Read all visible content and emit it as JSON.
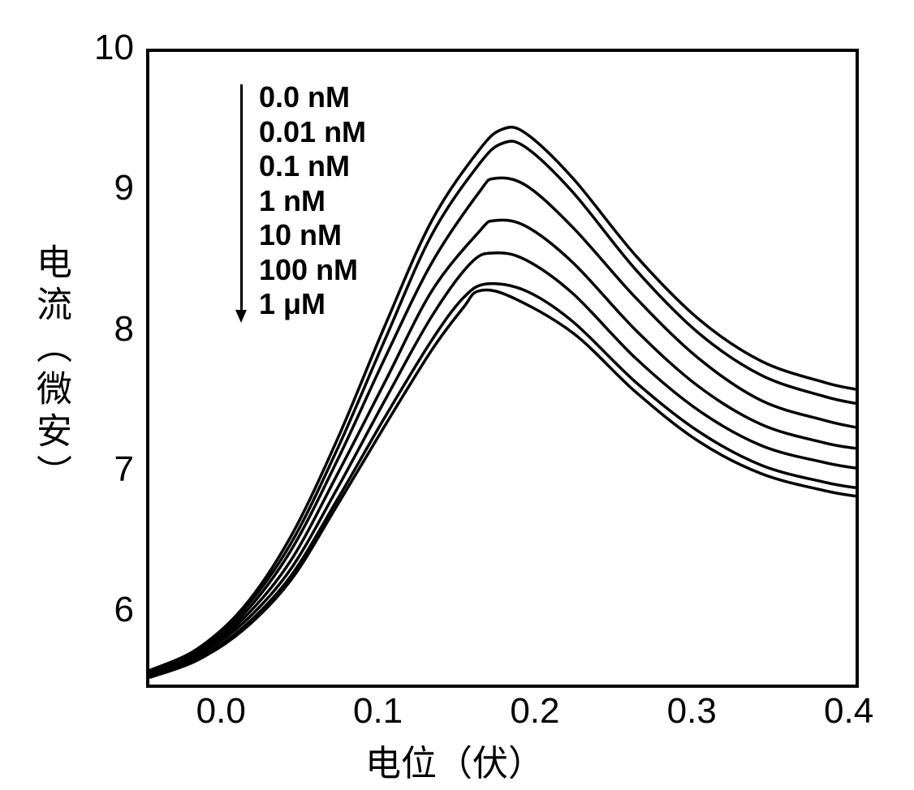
{
  "chart": {
    "type": "line",
    "xlabel": "电位（伏）",
    "ylabel": "电流（微安）",
    "label_fontsize": 44,
    "xlim": [
      -0.05,
      0.4
    ],
    "ylim": [
      5.5,
      10
    ],
    "xtick_positions": [
      0.0,
      0.1,
      0.2,
      0.3,
      0.4
    ],
    "xtick_labels": [
      "0.0",
      "0.1",
      "0.2",
      "0.3",
      "0.4"
    ],
    "ytick_positions": [
      6,
      7,
      8,
      9,
      10
    ],
    "ytick_labels": [
      "6",
      "7",
      "8",
      "9",
      "10"
    ],
    "tick_fontsize": 44,
    "background_color": "#ffffff",
    "border_color": "#000000",
    "border_width": 4,
    "line_color": "#000000",
    "line_width": 3.5,
    "series": [
      {
        "label": "0.0 nM",
        "x": [
          -0.05,
          -0.02,
          0.01,
          0.04,
          0.07,
          0.1,
          0.13,
          0.16,
          0.175,
          0.19,
          0.22,
          0.26,
          0.3,
          0.34,
          0.38,
          0.4
        ],
        "y": [
          5.6,
          5.75,
          6.05,
          6.55,
          7.25,
          8.05,
          8.8,
          9.3,
          9.45,
          9.42,
          9.1,
          8.55,
          8.1,
          7.8,
          7.65,
          7.6
        ]
      },
      {
        "label": "0.01 nM",
        "x": [
          -0.05,
          -0.02,
          0.01,
          0.04,
          0.07,
          0.1,
          0.13,
          0.16,
          0.175,
          0.19,
          0.22,
          0.26,
          0.3,
          0.34,
          0.38,
          0.4
        ],
        "y": [
          5.6,
          5.74,
          6.03,
          6.5,
          7.18,
          7.95,
          8.7,
          9.2,
          9.35,
          9.32,
          9.0,
          8.45,
          8.0,
          7.7,
          7.55,
          7.5
        ]
      },
      {
        "label": "0.1 nM",
        "x": [
          -0.05,
          -0.02,
          0.01,
          0.04,
          0.07,
          0.1,
          0.13,
          0.16,
          0.17,
          0.19,
          0.22,
          0.26,
          0.3,
          0.34,
          0.38,
          0.4
        ],
        "y": [
          5.59,
          5.72,
          6.0,
          6.45,
          7.1,
          7.82,
          8.5,
          9.0,
          9.1,
          9.05,
          8.75,
          8.25,
          7.82,
          7.52,
          7.38,
          7.33
        ]
      },
      {
        "label": "1 nM",
        "x": [
          -0.05,
          -0.02,
          0.01,
          0.04,
          0.07,
          0.1,
          0.13,
          0.16,
          0.17,
          0.19,
          0.22,
          0.26,
          0.3,
          0.34,
          0.38,
          0.4
        ],
        "y": [
          5.58,
          5.71,
          5.97,
          6.38,
          7.0,
          7.65,
          8.3,
          8.72,
          8.8,
          8.76,
          8.5,
          8.02,
          7.62,
          7.35,
          7.22,
          7.18
        ]
      },
      {
        "label": "10 nM",
        "x": [
          -0.05,
          -0.02,
          0.01,
          0.04,
          0.07,
          0.1,
          0.13,
          0.155,
          0.17,
          0.19,
          0.22,
          0.26,
          0.3,
          0.34,
          0.38,
          0.4
        ],
        "y": [
          5.57,
          5.7,
          5.94,
          6.32,
          6.9,
          7.52,
          8.12,
          8.5,
          8.57,
          8.52,
          8.28,
          7.82,
          7.45,
          7.2,
          7.08,
          7.04
        ]
      },
      {
        "label": "100 nM",
        "x": [
          -0.05,
          -0.02,
          0.01,
          0.04,
          0.07,
          0.1,
          0.13,
          0.15,
          0.165,
          0.19,
          0.22,
          0.26,
          0.3,
          0.34,
          0.38,
          0.4
        ],
        "y": [
          5.56,
          5.68,
          5.91,
          6.27,
          6.82,
          7.4,
          7.95,
          8.25,
          8.35,
          8.3,
          8.08,
          7.65,
          7.3,
          7.06,
          6.94,
          6.9
        ]
      },
      {
        "label": "1 μM",
        "x": [
          -0.05,
          -0.02,
          0.01,
          0.04,
          0.07,
          0.1,
          0.13,
          0.15,
          0.16,
          0.18,
          0.22,
          0.26,
          0.3,
          0.34,
          0.38,
          0.4
        ],
        "y": [
          5.55,
          5.67,
          5.89,
          6.24,
          6.78,
          7.34,
          7.88,
          8.18,
          8.3,
          8.26,
          8.0,
          7.58,
          7.23,
          7.0,
          6.88,
          6.84
        ]
      }
    ],
    "legend": {
      "x": 0.02,
      "y_start": 9.7,
      "fontsize": 36,
      "arrow_color": "#000000"
    }
  }
}
